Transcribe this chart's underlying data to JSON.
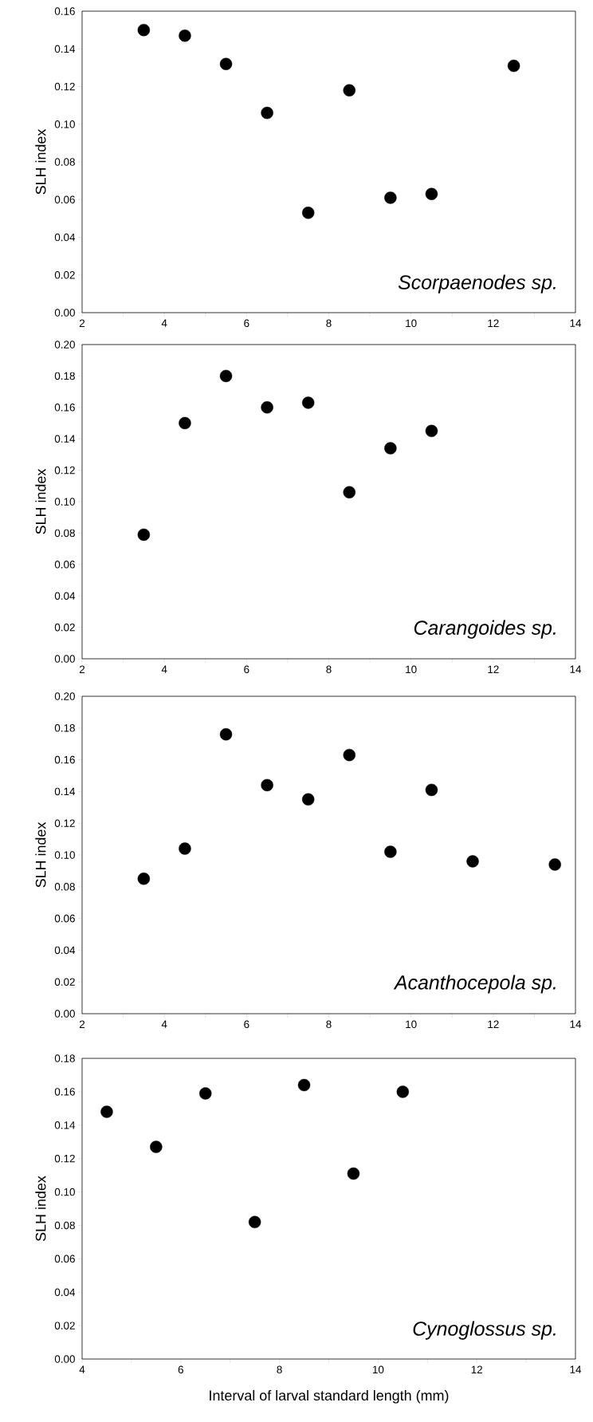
{
  "chart_data": [
    {
      "type": "scatter",
      "ylabel": "SLH index",
      "annotations": [
        "Scorpaenodes sp."
      ],
      "marker": "circle",
      "x": [
        3.5,
        4.5,
        5.5,
        6.5,
        7.5,
        8.5,
        9.5,
        10.5,
        12.5
      ],
      "series": [
        {
          "color": "#000000",
          "values": [
            0.15,
            0.147,
            0.132,
            0.106,
            0.053,
            0.118,
            0.061,
            0.063,
            0.131
          ]
        }
      ],
      "xlim": [
        2,
        14
      ],
      "xticks": [
        2,
        {
          "value": 3,
          "label": null
        },
        4,
        {
          "value": 5,
          "label": null
        },
        6,
        {
          "value": 7,
          "label": null
        },
        8,
        {
          "value": 9,
          "label": null
        },
        10,
        {
          "value": 11,
          "label": null
        },
        12,
        {
          "value": 13,
          "label": null
        },
        14
      ],
      "ylim": [
        0,
        0.16
      ],
      "yticks": [
        {
          "value": 0,
          "label": "0.00"
        },
        {
          "value": 0.02,
          "label": "0.02"
        },
        {
          "value": 0.04,
          "label": "0.04"
        },
        {
          "value": 0.06,
          "label": "0.06"
        },
        {
          "value": 0.08,
          "label": "0.08"
        },
        {
          "value": 0.1,
          "label": "0.10"
        },
        {
          "value": 0.12,
          "label": "0.12"
        },
        {
          "value": 0.14,
          "label": "0.14"
        },
        {
          "value": 0.16,
          "label": "0.16"
        }
      ]
    },
    {
      "type": "scatter",
      "ylabel": "SLH index",
      "annotations": [
        "Carangoides sp."
      ],
      "marker": "circle",
      "x": [
        3.5,
        4.5,
        5.5,
        6.5,
        7.5,
        8.5,
        9.5,
        10.5
      ],
      "series": [
        {
          "color": "#000000",
          "values": [
            0.079,
            0.15,
            0.18,
            0.16,
            0.163,
            0.106,
            0.134,
            0.145
          ]
        }
      ],
      "xlim": [
        2,
        14
      ],
      "xticks": [
        2,
        {
          "value": 3,
          "label": null
        },
        4,
        {
          "value": 5,
          "label": null
        },
        6,
        {
          "value": 7,
          "label": null
        },
        8,
        {
          "value": 9,
          "label": null
        },
        10,
        {
          "value": 11,
          "label": null
        },
        12,
        {
          "value": 13,
          "label": null
        },
        14
      ],
      "ylim": [
        0,
        0.2
      ],
      "yticks": [
        {
          "value": 0,
          "label": "0.00"
        },
        {
          "value": 0.02,
          "label": "0.02"
        },
        {
          "value": 0.04,
          "label": "0.04"
        },
        {
          "value": 0.06,
          "label": "0.06"
        },
        {
          "value": 0.08,
          "label": "0.08"
        },
        {
          "value": 0.1,
          "label": "0.10"
        },
        {
          "value": 0.12,
          "label": "0.12"
        },
        {
          "value": 0.14,
          "label": "0.14"
        },
        {
          "value": 0.16,
          "label": "0.16"
        },
        {
          "value": 0.18,
          "label": "0.18"
        },
        {
          "value": 0.2,
          "label": "0.20"
        }
      ]
    },
    {
      "type": "scatter",
      "ylabel": "SLH index",
      "annotations": [
        "Acanthocepola sp."
      ],
      "marker": "circle",
      "x": [
        3.5,
        4.5,
        5.5,
        6.5,
        7.5,
        8.5,
        9.5,
        10.5,
        11.5,
        13.5
      ],
      "series": [
        {
          "color": "#000000",
          "values": [
            0.085,
            0.104,
            0.176,
            0.144,
            0.135,
            0.163,
            0.102,
            0.141,
            0.096,
            0.094
          ]
        }
      ],
      "xlim": [
        2,
        14
      ],
      "xticks": [
        2,
        {
          "value": 3,
          "label": null
        },
        4,
        {
          "value": 5,
          "label": null
        },
        6,
        {
          "value": 7,
          "label": null
        },
        8,
        {
          "value": 9,
          "label": null
        },
        10,
        {
          "value": 11,
          "label": null
        },
        12,
        {
          "value": 13,
          "label": null
        },
        14
      ],
      "ylim": [
        0,
        0.2
      ],
      "yticks": [
        {
          "value": 0,
          "label": "0.00"
        },
        {
          "value": 0.02,
          "label": "0.02"
        },
        {
          "value": 0.04,
          "label": "0.04"
        },
        {
          "value": 0.06,
          "label": "0.06"
        },
        {
          "value": 0.08,
          "label": "0.08"
        },
        {
          "value": 0.1,
          "label": "0.10"
        },
        {
          "value": 0.12,
          "label": "0.12"
        },
        {
          "value": 0.14,
          "label": "0.14"
        },
        {
          "value": 0.16,
          "label": "0.16"
        },
        {
          "value": 0.18,
          "label": "0.18"
        },
        {
          "value": 0.2,
          "label": "0.20"
        }
      ]
    },
    {
      "type": "scatter",
      "ylabel": "SLH index",
      "xlabel": "Interval of larval standard length (mm)",
      "annotations": [
        "Cynoglossus sp."
      ],
      "marker": "circle",
      "x": [
        4.5,
        5.5,
        6.5,
        7.5,
        8.5,
        9.5,
        10.5
      ],
      "series": [
        {
          "color": "#000000",
          "values": [
            0.148,
            0.127,
            0.159,
            0.082,
            0.164,
            0.111,
            0.16
          ]
        }
      ],
      "xlim": [
        4,
        14
      ],
      "xticks": [
        4,
        {
          "value": 5,
          "label": null
        },
        6,
        {
          "value": 7,
          "label": null
        },
        8,
        {
          "value": 9,
          "label": null
        },
        10,
        {
          "value": 11,
          "label": null
        },
        12,
        {
          "value": 13,
          "label": null
        },
        14
      ],
      "ylim": [
        0,
        0.18
      ],
      "yticks": [
        {
          "value": 0,
          "label": "0.00"
        },
        {
          "value": 0.02,
          "label": "0.02"
        },
        {
          "value": 0.04,
          "label": "0.04"
        },
        {
          "value": 0.06,
          "label": "0.06"
        },
        {
          "value": 0.08,
          "label": "0.08"
        },
        {
          "value": 0.1,
          "label": "0.10"
        },
        {
          "value": 0.12,
          "label": "0.12"
        },
        {
          "value": 0.14,
          "label": "0.14"
        },
        {
          "value": 0.16,
          "label": "0.16"
        },
        {
          "value": 0.18,
          "label": "0.18"
        }
      ]
    }
  ]
}
